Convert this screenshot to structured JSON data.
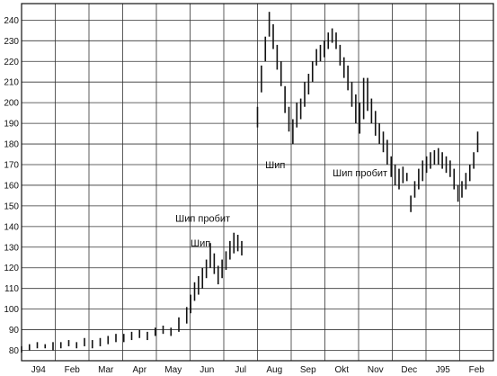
{
  "chart_data": {
    "type": "ohlc",
    "title": "",
    "xlabel": "",
    "ylabel": "",
    "ylim": [
      75,
      248
    ],
    "grid": true,
    "y_ticks": [
      80,
      90,
      100,
      110,
      120,
      130,
      140,
      150,
      160,
      170,
      180,
      190,
      200,
      210,
      220,
      230,
      240
    ],
    "x_tick_labels": [
      "J94",
      "Feb",
      "Mar",
      "Apr",
      "May",
      "Jun",
      "Jul",
      "Aug",
      "Sep",
      "Okt",
      "Nov",
      "Dec",
      "J95",
      "Feb"
    ],
    "series": [
      {
        "type": "bars",
        "points": [
          [
            0,
            79,
            82
          ],
          [
            4,
            80,
            83
          ],
          [
            8,
            81,
            84
          ],
          [
            12,
            81,
            83
          ],
          [
            16,
            80,
            84
          ],
          [
            20,
            81,
            84
          ],
          [
            24,
            82,
            85
          ],
          [
            28,
            81,
            84
          ],
          [
            32,
            82,
            86
          ],
          [
            36,
            81,
            85
          ],
          [
            40,
            82,
            86
          ],
          [
            44,
            83,
            87
          ],
          [
            48,
            84,
            88
          ],
          [
            52,
            84,
            88
          ],
          [
            56,
            85,
            89
          ],
          [
            60,
            86,
            90
          ],
          [
            64,
            85,
            89
          ],
          [
            68,
            87,
            91
          ],
          [
            72,
            88,
            92
          ],
          [
            76,
            87,
            91
          ],
          [
            80,
            89,
            96
          ],
          [
            84,
            93,
            101
          ],
          [
            86,
            98,
            107
          ],
          [
            88,
            104,
            113
          ],
          [
            90,
            107,
            116
          ],
          [
            92,
            110,
            120
          ],
          [
            94,
            115,
            124
          ],
          [
            96,
            120,
            132
          ],
          [
            98,
            117,
            127
          ],
          [
            100,
            112,
            121
          ],
          [
            102,
            115,
            124
          ],
          [
            104,
            119,
            128
          ],
          [
            106,
            124,
            133
          ],
          [
            108,
            127,
            137
          ],
          [
            110,
            128,
            136
          ],
          [
            112,
            126,
            133
          ],
          [
            120,
            188,
            198
          ],
          [
            122,
            205,
            218
          ],
          [
            124,
            220,
            232
          ],
          [
            126,
            232,
            244
          ],
          [
            128,
            226,
            238
          ],
          [
            130,
            216,
            228
          ],
          [
            132,
            208,
            220
          ],
          [
            134,
            195,
            208
          ],
          [
            136,
            186,
            198
          ],
          [
            138,
            180,
            192
          ],
          [
            140,
            188,
            200
          ],
          [
            142,
            192,
            202
          ],
          [
            144,
            198,
            210
          ],
          [
            146,
            204,
            214
          ],
          [
            148,
            210,
            220
          ],
          [
            150,
            218,
            226
          ],
          [
            152,
            220,
            228
          ],
          [
            154,
            222,
            230
          ],
          [
            156,
            226,
            234
          ],
          [
            158,
            229,
            236
          ],
          [
            160,
            226,
            234
          ],
          [
            162,
            218,
            228
          ],
          [
            164,
            212,
            222
          ],
          [
            166,
            206,
            218
          ],
          [
            168,
            198,
            210
          ],
          [
            170,
            190,
            204
          ],
          [
            172,
            185,
            200
          ],
          [
            174,
            192,
            212
          ],
          [
            176,
            196,
            212
          ],
          [
            178,
            190,
            202
          ],
          [
            180,
            184,
            196
          ],
          [
            182,
            180,
            190
          ],
          [
            184,
            176,
            186
          ],
          [
            186,
            170,
            182
          ],
          [
            188,
            164,
            174
          ],
          [
            190,
            160,
            170
          ],
          [
            192,
            158,
            168
          ],
          [
            194,
            161,
            169
          ],
          [
            196,
            162,
            166
          ],
          [
            198,
            147,
            155
          ],
          [
            200,
            154,
            162
          ],
          [
            202,
            158,
            168
          ],
          [
            204,
            162,
            172
          ],
          [
            206,
            166,
            174
          ],
          [
            208,
            168,
            176
          ],
          [
            210,
            170,
            177
          ],
          [
            212,
            170,
            178
          ],
          [
            214,
            168,
            176
          ],
          [
            216,
            166,
            174
          ],
          [
            218,
            164,
            172
          ],
          [
            220,
            158,
            168
          ],
          [
            222,
            152,
            160
          ],
          [
            224,
            154,
            162
          ],
          [
            226,
            158,
            166
          ],
          [
            228,
            162,
            170
          ],
          [
            230,
            168,
            176
          ],
          [
            232,
            176,
            186
          ]
        ]
      }
    ],
    "annotations": [
      {
        "text": "Шип",
        "x": 97,
        "y": 132,
        "align": "end"
      },
      {
        "text": "Шип пробит",
        "x": 107,
        "y": 144,
        "align": "end"
      },
      {
        "text": "Шип",
        "x": 135,
        "y": 170,
        "align": "end"
      },
      {
        "text": "Шип пробит",
        "x": 187,
        "y": 166,
        "align": "end"
      }
    ]
  }
}
